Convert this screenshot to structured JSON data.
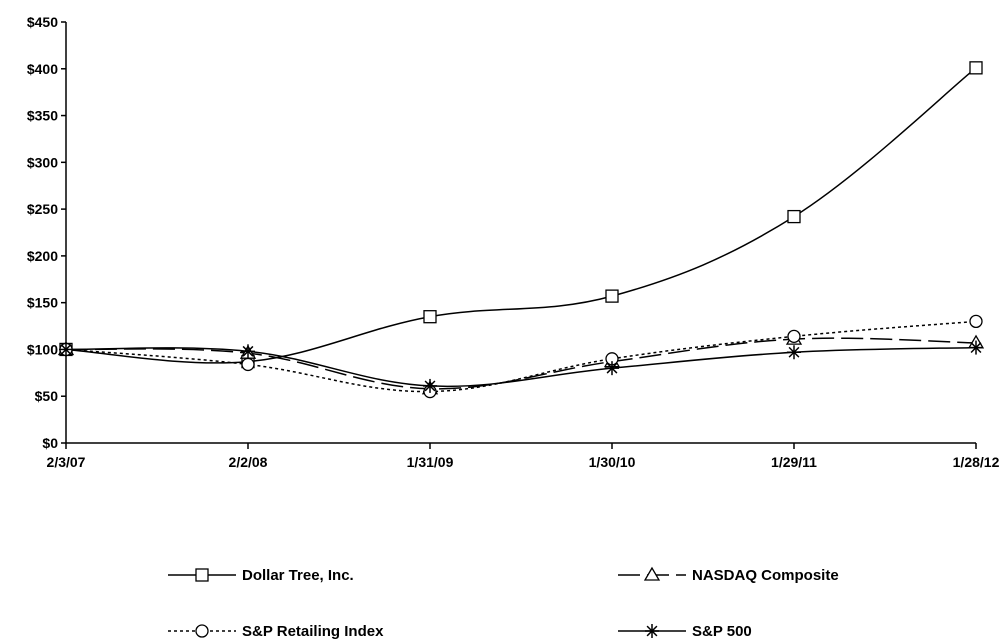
{
  "chart_data": {
    "type": "line",
    "title": "",
    "xlabel": "",
    "ylabel": "",
    "categories": [
      "2/3/07",
      "2/2/08",
      "1/31/09",
      "1/30/10",
      "1/29/11",
      "1/28/12"
    ],
    "ylim": [
      0,
      450
    ],
    "yticks": [
      0,
      50,
      100,
      150,
      200,
      250,
      300,
      350,
      400,
      450
    ],
    "ytick_labels": [
      "$0",
      "$50",
      "$100",
      "$150",
      "$200",
      "$250",
      "$300",
      "$350",
      "$400",
      "$450"
    ],
    "grid": false,
    "legend_position": "bottom",
    "series": [
      {
        "name": "Dollar Tree, Inc.",
        "marker": "square",
        "line_style": "solid",
        "color": "#000000",
        "values": [
          100,
          87,
          135,
          157,
          242,
          401
        ]
      },
      {
        "name": "NASDAQ Composite",
        "marker": "triangle",
        "line_style": "long-dash",
        "color": "#000000",
        "values": [
          100,
          96,
          58,
          87,
          111,
          107
        ]
      },
      {
        "name": "S&P Retailing Index",
        "marker": "circle",
        "line_style": "dotted",
        "color": "#000000",
        "values": [
          100,
          84,
          55,
          90,
          114,
          130
        ]
      },
      {
        "name": "S&P 500",
        "marker": "asterisk",
        "line_style": "solid",
        "color": "#000000",
        "values": [
          100,
          98,
          61,
          80,
          97,
          102
        ]
      }
    ]
  }
}
